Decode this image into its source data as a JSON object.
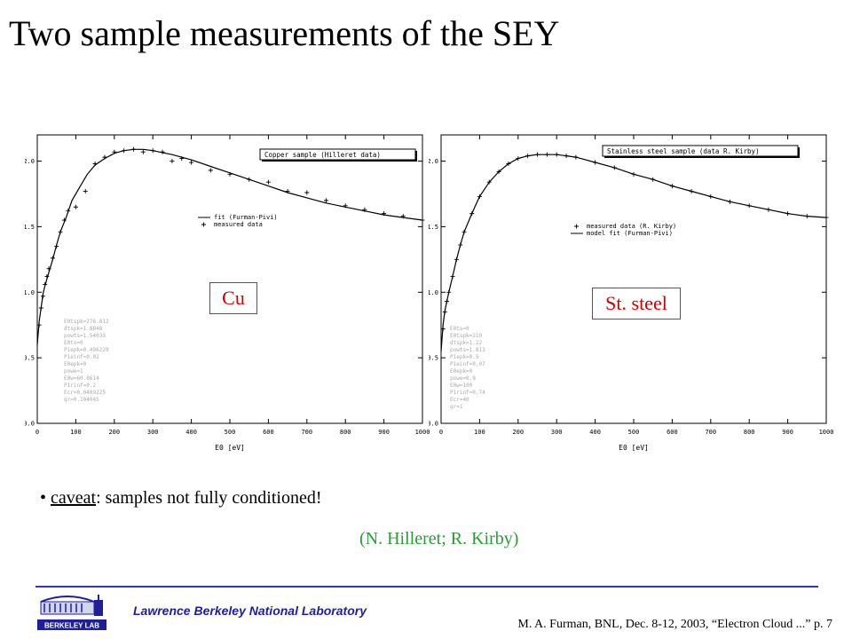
{
  "slide": {
    "title": "Two sample measurements of the SEY",
    "bullet_caveat": "caveat",
    "bullet_rest": ": samples not fully conditioned!",
    "credits": "(N. Hilleret; R. Kirby)",
    "lab_name": "Lawrence Berkeley National Laboratory",
    "citation": "M. A. Furman, BNL, Dec. 8-12, 2003, “Electron Cloud ...”  p. 7",
    "logo_text": "BERKELEY LAB",
    "colors": {
      "title": "#000000",
      "credits": "#2e9a36",
      "rule": "#3333cc",
      "lab_name": "#1f1f99",
      "callout_text": "#cc0000",
      "plot": "#000000"
    }
  },
  "chart_data": [
    {
      "type": "line",
      "callout": "Cu",
      "title": "Copper sample (Hilleret data)",
      "xlabel": "E0 [eV]",
      "ylabel": "",
      "xlim": [
        0,
        1000
      ],
      "ylim": [
        0,
        2.2
      ],
      "xticks": [
        "0",
        "100",
        "200",
        "300",
        "400",
        "500",
        "600",
        "700",
        "800",
        "900",
        "1000"
      ],
      "yticks": [
        "0.0",
        "0.5",
        "1.0",
        "1.5",
        "2.0"
      ],
      "legend": [
        "fit (Furman-Pivi)",
        "measured data"
      ],
      "legend_placement": "center-right",
      "params": [
        "E0tspk=276.812",
        "dtspk=1.8848",
        "powts=1.54033",
        "E0ts=0",
        "P1epk=0.496229",
        "P1einf=0.02",
        "E0epk=0",
        "powe=1",
        "E0w=60.8614",
        "P1rinf=0.2",
        "Ecr=0.0409225",
        "qr=0.104045"
      ],
      "series": [
        {
          "name": "fit (Furman-Pivi)",
          "x": [
            0,
            5,
            10,
            15,
            20,
            30,
            40,
            50,
            60,
            75,
            90,
            110,
            130,
            150,
            175,
            200,
            225,
            250,
            275,
            300,
            350,
            400,
            450,
            500,
            550,
            600,
            650,
            700,
            750,
            800,
            850,
            900,
            950,
            1000
          ],
          "values": [
            0.6,
            0.78,
            0.88,
            0.99,
            1.05,
            1.15,
            1.25,
            1.36,
            1.46,
            1.57,
            1.7,
            1.8,
            1.9,
            1.97,
            2.02,
            2.06,
            2.08,
            2.09,
            2.09,
            2.08,
            2.05,
            2.01,
            1.96,
            1.91,
            1.86,
            1.81,
            1.76,
            1.72,
            1.68,
            1.65,
            1.62,
            1.59,
            1.57,
            1.55
          ]
        },
        {
          "name": "measured data",
          "x": [
            5,
            10,
            15,
            20,
            25,
            30,
            40,
            50,
            60,
            70,
            80,
            100,
            125,
            150,
            175,
            200,
            225,
            250,
            275,
            300,
            325,
            350,
            375,
            400,
            450,
            500,
            550,
            600,
            650,
            700,
            750,
            800,
            850,
            900,
            950,
            1000
          ],
          "values": [
            0.75,
            0.88,
            0.97,
            1.06,
            1.12,
            1.18,
            1.26,
            1.35,
            1.46,
            1.55,
            1.62,
            1.65,
            1.77,
            1.98,
            2.03,
            2.07,
            2.08,
            2.09,
            2.07,
            2.08,
            2.07,
            2.0,
            2.02,
            1.99,
            1.93,
            1.9,
            1.86,
            1.84,
            1.77,
            1.76,
            1.7,
            1.66,
            1.63,
            1.6,
            1.58,
            1.55
          ]
        }
      ]
    },
    {
      "type": "line",
      "callout": "St. steel",
      "title": "Stainless steel sample (data R. Kirby)",
      "xlabel": "E0 [eV]",
      "ylabel": "",
      "xlim": [
        0,
        1000
      ],
      "ylim": [
        0,
        2.2
      ],
      "xticks": [
        "0",
        "100",
        "200",
        "300",
        "400",
        "500",
        "600",
        "700",
        "800",
        "900",
        "1000"
      ],
      "yticks": [
        "0.0",
        "0.5",
        "1.0",
        "1.5",
        "2.0"
      ],
      "legend": [
        "measured data (R. Kirby)",
        "model fit (Furman-Pivi)"
      ],
      "legend_placement": "center-right",
      "params": [
        "E0ts=0",
        "E0tspk=310",
        "dtspk=1.22",
        "powts=1.813",
        "P1epk=0.5",
        "P1einf=0.07",
        "E0epk=0",
        "powe=0.9",
        "E0w=100",
        "P1rinf=0.74",
        "Ecr=40",
        "qr=1"
      ],
      "series": [
        {
          "name": "model fit (Furman-Pivi)",
          "x": [
            0,
            5,
            10,
            15,
            20,
            30,
            40,
            50,
            60,
            80,
            100,
            125,
            150,
            175,
            200,
            225,
            250,
            275,
            300,
            325,
            350,
            400,
            450,
            500,
            550,
            600,
            650,
            700,
            750,
            800,
            850,
            900,
            950,
            1000
          ],
          "values": [
            0.55,
            0.75,
            0.86,
            0.93,
            1.0,
            1.12,
            1.25,
            1.36,
            1.46,
            1.6,
            1.73,
            1.84,
            1.92,
            1.98,
            2.02,
            2.04,
            2.05,
            2.05,
            2.05,
            2.04,
            2.03,
            1.99,
            1.95,
            1.9,
            1.86,
            1.81,
            1.77,
            1.73,
            1.69,
            1.66,
            1.63,
            1.6,
            1.58,
            1.57
          ]
        },
        {
          "name": "measured data (R. Kirby)",
          "x": [
            5,
            10,
            15,
            20,
            30,
            40,
            50,
            60,
            80,
            100,
            125,
            150,
            175,
            200,
            225,
            250,
            275,
            300,
            325,
            350,
            400,
            450,
            500,
            550,
            600,
            650,
            700,
            750,
            800,
            850,
            900,
            950,
            1000
          ],
          "values": [
            0.72,
            0.85,
            0.93,
            1.0,
            1.12,
            1.25,
            1.36,
            1.46,
            1.6,
            1.73,
            1.84,
            1.92,
            1.98,
            2.02,
            2.04,
            2.05,
            2.05,
            2.05,
            2.04,
            2.03,
            1.99,
            1.95,
            1.9,
            1.86,
            1.81,
            1.77,
            1.73,
            1.69,
            1.66,
            1.63,
            1.6,
            1.58,
            1.57
          ]
        }
      ]
    }
  ]
}
